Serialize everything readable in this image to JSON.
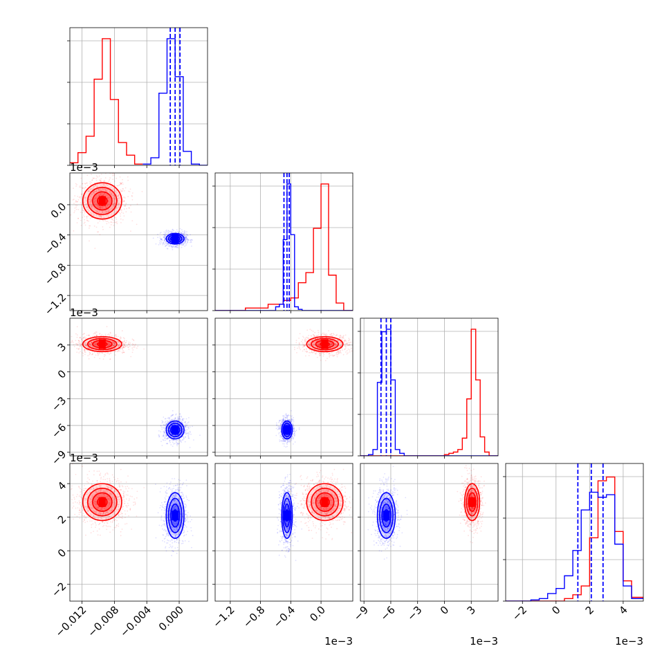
{
  "chart_data": {
    "type": "corner",
    "parameters": [
      {
        "ticks": [
          -0.012,
          -0.008,
          -0.004,
          0.0
        ],
        "tick_labels": [
          "−0.012",
          "−0.008",
          "−0.004",
          "0.000"
        ],
        "range": [
          -0.0135,
          0.0035
        ],
        "offset_text": ""
      },
      {
        "ticks": [
          -1.2,
          -0.8,
          -0.4,
          0.0
        ],
        "tick_labels": [
          "−1.2",
          "−0.8",
          "−0.4",
          "0.0"
        ],
        "range": [
          -1.4,
          0.42
        ],
        "offset_text": "1e−3"
      },
      {
        "ticks": [
          -9,
          -6,
          -3,
          0,
          3
        ],
        "tick_labels": [
          "−9",
          "−6",
          "−3",
          "0",
          "3"
        ],
        "range": [
          -9.4,
          6.0
        ],
        "offset_text": "1e−3"
      },
      {
        "ticks": [
          -2,
          0,
          2,
          4
        ],
        "tick_labels": [
          "−2",
          "0",
          "2",
          "4"
        ],
        "range": [
          -3.0,
          5.2
        ],
        "offset_text": "1e−3"
      }
    ],
    "series": [
      {
        "color": "#ff0000",
        "means": [
          -0.0095,
          0.05,
          3.1,
          2.9
        ],
        "sds": [
          0.0012,
          0.12,
          0.42,
          0.55
        ],
        "histograms": [
          {
            "edges": [
              -0.0135,
              -0.0125,
              -0.0115,
              -0.0105,
              -0.0095,
              -0.0085,
              -0.0075,
              -0.0065,
              -0.0055,
              -0.0045
            ],
            "counts": [
              0.02,
              0.1,
              0.23,
              0.68,
              1.0,
              0.52,
              0.18,
              0.08,
              0.01
            ]
          },
          {
            "edges": [
              -1.4,
              -1.0,
              -0.7,
              -0.5,
              -0.4,
              -0.3,
              -0.2,
              -0.1,
              0.0,
              0.1,
              0.2,
              0.3,
              0.42
            ],
            "counts": [
              0.0,
              0.02,
              0.05,
              0.08,
              0.1,
              0.22,
              0.3,
              0.65,
              1.0,
              0.28,
              0.06,
              0.0
            ]
          },
          {
            "edges": [
              -9.4,
              0.0,
              0.5,
              1.0,
              1.5,
              2.0,
              2.5,
              3.0,
              3.5,
              4.0,
              4.5,
              5.0,
              6.0
            ],
            "counts": [
              0.0,
              0.01,
              0.02,
              0.03,
              0.05,
              0.14,
              0.45,
              1.0,
              0.6,
              0.15,
              0.03,
              0.0
            ]
          },
          {
            "edges": [
              -3.0,
              0.5,
              1.0,
              1.5,
              2.0,
              2.5,
              3.0,
              3.5,
              4.0,
              4.5,
              5.2
            ],
            "counts": [
              0.0,
              0.02,
              0.05,
              0.12,
              0.5,
              0.95,
              0.98,
              0.55,
              0.16,
              0.03
            ]
          }
        ],
        "quantile_lines": []
      },
      {
        "color": "#0000ff",
        "means": [
          -0.0005,
          -0.45,
          -6.5,
          2.1
        ],
        "sds": [
          0.00055,
          0.035,
          0.5,
          0.68
        ],
        "histograms": [
          {
            "edges": [
              -0.0045,
              -0.0035,
              -0.0025,
              -0.0015,
              -0.0005,
              0.0005,
              0.0015,
              0.0025,
              0.0035
            ],
            "counts": [
              0.01,
              0.06,
              0.57,
              1.0,
              0.7,
              0.11,
              0.01,
              0.0
            ]
          },
          {
            "edges": [
              -1.4,
              -0.6,
              -0.55,
              -0.5,
              -0.45,
              -0.4,
              -0.35,
              -0.3,
              -0.25,
              0.42
            ],
            "counts": [
              0.0,
              0.03,
              0.05,
              0.56,
              1.0,
              0.6,
              0.03,
              0.01,
              0.0
            ]
          },
          {
            "edges": [
              -9.4,
              -8.5,
              -8.0,
              -7.5,
              -7.0,
              -6.5,
              -6.0,
              -5.5,
              -5.0,
              -4.5,
              -4.0,
              6.0
            ],
            "counts": [
              0.0,
              0.01,
              0.05,
              0.58,
              0.98,
              1.0,
              0.6,
              0.05,
              0.02,
              0.0,
              0.0
            ]
          },
          {
            "edges": [
              -3.0,
              -1.5,
              -1.0,
              -0.5,
              0.0,
              0.5,
              1.0,
              1.5,
              2.0,
              2.5,
              3.0,
              3.5,
              4.0,
              4.5,
              5.2
            ],
            "counts": [
              0.0,
              0.01,
              0.02,
              0.06,
              0.1,
              0.2,
              0.4,
              0.72,
              0.86,
              0.82,
              0.84,
              0.45,
              0.12,
              0.02
            ]
          }
        ],
        "quantile_lines": [
          [
            -0.0011,
            -0.0005,
            0.0001
          ],
          [
            -0.49,
            -0.45,
            -0.42
          ],
          [
            -7.1,
            -6.5,
            -6.0
          ],
          [
            1.3,
            2.1,
            2.8
          ]
        ]
      }
    ],
    "grid": true,
    "contour_levels": [
      0.5,
      1.0,
      1.5,
      2.0
    ],
    "scatter_points_per_series": 900
  }
}
